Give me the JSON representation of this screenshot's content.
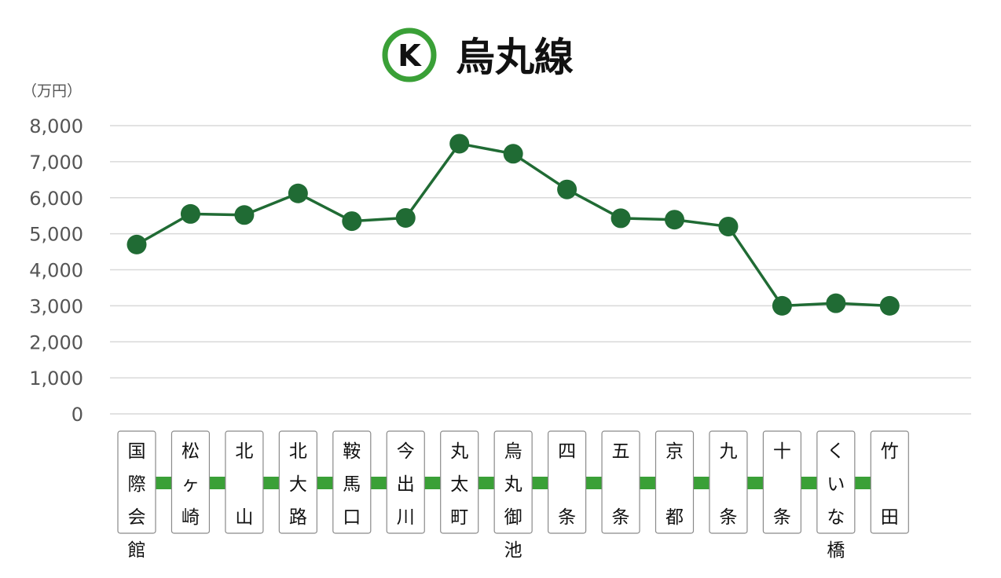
{
  "chart_data": {
    "type": "line",
    "title": "烏丸線",
    "line_badge": "K",
    "ylabel": "（万円）",
    "ylim": [
      0,
      8000
    ],
    "yticks": [
      0,
      1000,
      2000,
      3000,
      4000,
      5000,
      6000,
      7000,
      8000
    ],
    "ytick_labels": [
      "0",
      "1,000",
      "2,000",
      "3,000",
      "4,000",
      "5,000",
      "6,000",
      "7,000",
      "8,000"
    ],
    "grid": true,
    "categories": [
      "国際会館",
      "松ヶ崎",
      "北山",
      "北大路",
      "鞍馬口",
      "今出川",
      "丸太町",
      "烏丸御池",
      "四条",
      "五条",
      "京都",
      "九条",
      "十条",
      "くいな橋",
      "竹田"
    ],
    "station_label_rows": [
      [
        "国",
        "際",
        "会",
        "館"
      ],
      [
        "松",
        "ヶ",
        "崎"
      ],
      [
        "北",
        "",
        "山"
      ],
      [
        "北",
        "大",
        "路"
      ],
      [
        "鞍",
        "馬",
        "口"
      ],
      [
        "今",
        "出",
        "川"
      ],
      [
        "丸",
        "太",
        "町"
      ],
      [
        "烏",
        "丸",
        "御",
        "池"
      ],
      [
        "四",
        "",
        "条"
      ],
      [
        "五",
        "",
        "条"
      ],
      [
        "京",
        "",
        "都"
      ],
      [
        "九",
        "",
        "条"
      ],
      [
        "十",
        "",
        "条"
      ],
      [
        "く",
        "い",
        "な",
        "橋"
      ],
      [
        "竹",
        "",
        "田"
      ]
    ],
    "values": [
      4700,
      5550,
      5520,
      6120,
      5350,
      5440,
      7500,
      7220,
      6230,
      5430,
      5390,
      5200,
      3000,
      3070,
      3000
    ],
    "colors": {
      "line": "#206b34",
      "marker": "#206b34",
      "route_bar": "#3aa037",
      "badge_ring": "#3aa037",
      "grid": "#d9d9d9",
      "tick_text": "#555555",
      "station_box_border": "#8a8a8a"
    }
  }
}
